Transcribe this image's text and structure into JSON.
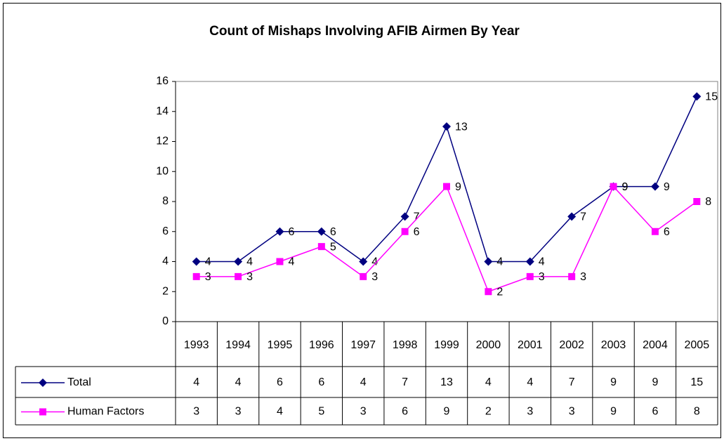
{
  "chart_data": {
    "type": "line",
    "title": "Count of Mishaps Involving AFIB Airmen By Year",
    "categories": [
      "1993",
      "1994",
      "1995",
      "1996",
      "1997",
      "1998",
      "1999",
      "2000",
      "2001",
      "2002",
      "2003",
      "2004",
      "2005"
    ],
    "series": [
      {
        "name": "Total",
        "color": "#000080",
        "marker": "diamond",
        "values": [
          4,
          4,
          6,
          6,
          4,
          7,
          13,
          4,
          4,
          7,
          9,
          9,
          15
        ]
      },
      {
        "name": "Human Factors",
        "color": "#ff00ff",
        "marker": "square",
        "values": [
          3,
          3,
          4,
          5,
          3,
          6,
          9,
          2,
          3,
          3,
          9,
          6,
          8
        ]
      }
    ],
    "ylim": [
      0,
      16
    ],
    "yticks": [
      0,
      2,
      4,
      6,
      8,
      10,
      12,
      14,
      16
    ],
    "grid": false,
    "data_table": true
  }
}
